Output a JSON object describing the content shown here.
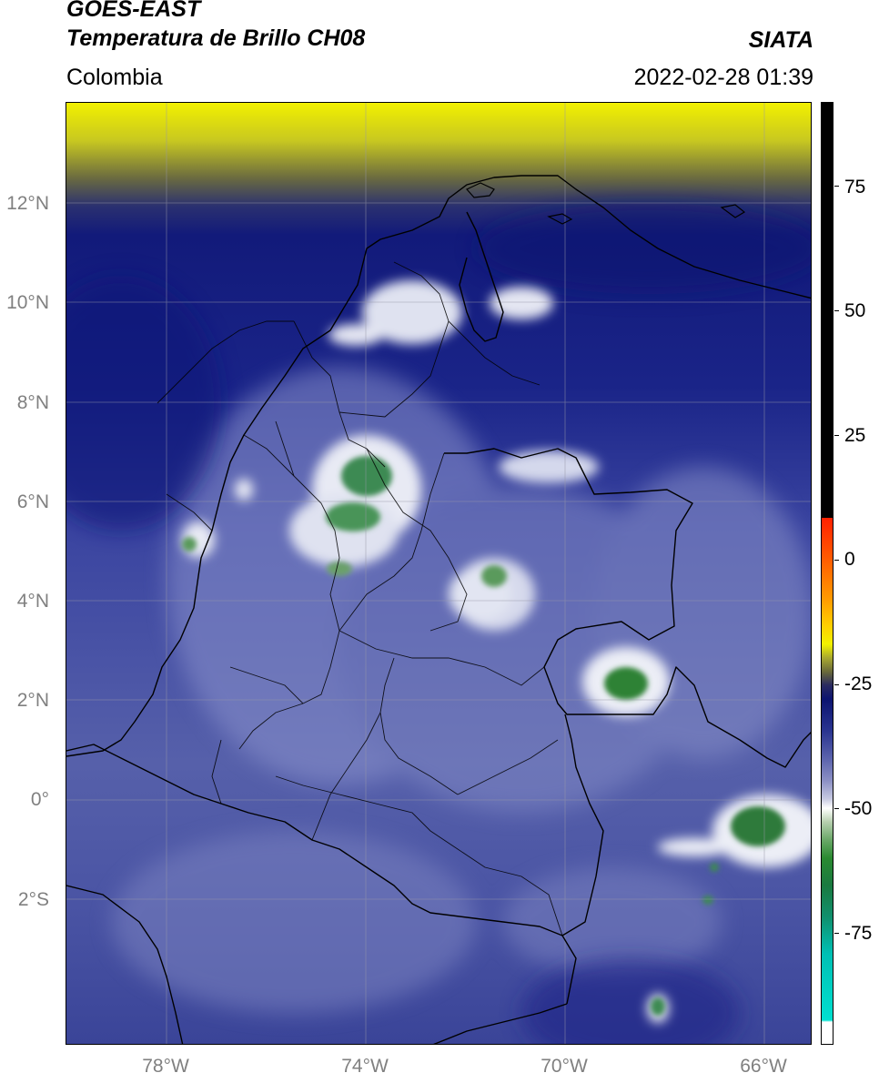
{
  "header": {
    "satellite": "GOES-EAST",
    "product": "Temperatura de Brillo CH08",
    "organization": "SIATA",
    "region": "Colombia",
    "datetime": "2022-02-28 01:39"
  },
  "map": {
    "lat_ticks": [
      "12°N",
      "10°N",
      "8°N",
      "6°N",
      "4°N",
      "2°N",
      "0°",
      "2°S"
    ],
    "lon_ticks": [
      "78°W",
      "74°W",
      "70°W",
      "66°W"
    ],
    "gridlines": true,
    "colors": {
      "cold_top": "#2e7a3a",
      "cloud_white": "#eef0f5",
      "mid_level": "#5560a8",
      "dry_deep_blue": "#141a78",
      "warm_yellow": "#f0f000",
      "border": "#000000"
    }
  },
  "colorbar": {
    "ticks": [
      "75",
      "50",
      "25",
      "0",
      "-25",
      "-50",
      "-75"
    ],
    "colors": {
      "black": "#000000",
      "red": "#ff2000",
      "orange": "#ff9a00",
      "yellow": "#f2f200",
      "olive": "#6a6a3a",
      "navy": "#0c1470",
      "periwinkle": "#8c90c4",
      "white": "#ffffff",
      "green": "#2a8a30",
      "teal": "#00e0d0"
    }
  }
}
